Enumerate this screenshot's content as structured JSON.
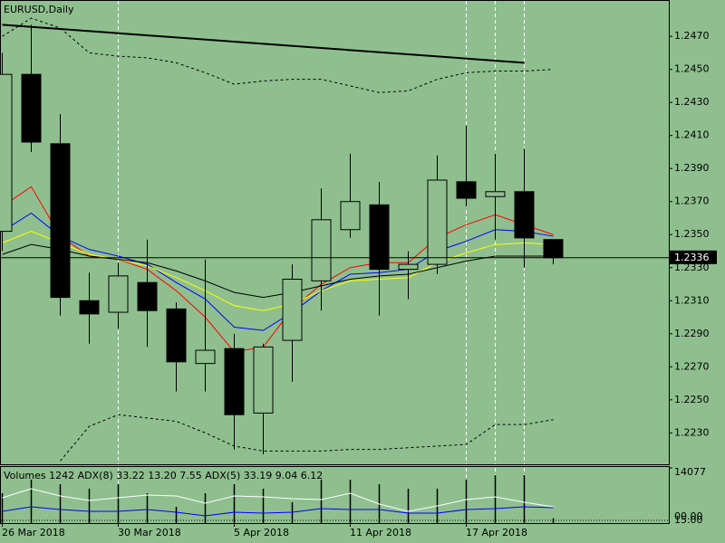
{
  "chart_data": [
    {
      "type": "candlestick",
      "title": "EURUSD,Daily",
      "categories": [
        "26 Mar 2018",
        null,
        null,
        null,
        "30 Mar 2018",
        null,
        null,
        null,
        "5 Apr 2018",
        null,
        null,
        null,
        "11 Apr 2018",
        null,
        null,
        null,
        "17 Apr 2018",
        null,
        null,
        null
      ],
      "open": [
        1.2352,
        1.2447,
        1.2405,
        1.231,
        1.2303,
        1.2321,
        1.2305,
        1.2272,
        1.2281,
        1.2242,
        1.2286,
        1.2322,
        1.2353,
        1.2368,
        1.2329,
        1.2332,
        1.2382,
        1.2373,
        1.2376,
        1.2347
      ],
      "high": [
        1.246,
        1.2477,
        1.2423,
        1.2327,
        1.2333,
        1.2347,
        1.2309,
        1.2335,
        1.229,
        1.2284,
        1.2332,
        1.2378,
        1.2399,
        1.2382,
        1.234,
        1.2398,
        1.2416,
        1.2399,
        1.2402,
        1.2347
      ],
      "low": [
        1.234,
        1.24,
        1.2301,
        1.2284,
        1.2293,
        1.2282,
        1.2255,
        1.2255,
        1.222,
        1.2217,
        1.2261,
        1.2304,
        1.2348,
        1.2301,
        1.2311,
        1.2326,
        1.2367,
        1.2347,
        1.233,
        1.2332
      ],
      "close": [
        1.2447,
        1.2406,
        1.2312,
        1.2302,
        1.2325,
        1.2304,
        1.2273,
        1.228,
        1.2241,
        1.2282,
        1.2323,
        1.2359,
        1.237,
        1.2329,
        1.2332,
        1.2383,
        1.2372,
        1.2376,
        1.2348,
        1.2336
      ],
      "up_color": "#8fbf8f",
      "down_color": "#000000",
      "series": [
        {
          "color": "#ff0000",
          "values": [
            1.2367,
            1.2379,
            1.2349,
            1.2337,
            1.2335,
            1.2329,
            1.2316,
            1.23,
            1.2279,
            1.2282,
            1.2305,
            1.232,
            1.233,
            1.2333,
            1.2333,
            1.2348,
            1.2356,
            1.2362,
            1.2356,
            1.235
          ]
        },
        {
          "color": "#0000ff",
          "values": [
            1.2352,
            1.2363,
            1.2349,
            1.2341,
            1.2337,
            1.2332,
            1.2321,
            1.2311,
            1.2294,
            1.2292,
            1.2303,
            1.2316,
            1.2326,
            1.2327,
            1.2329,
            1.234,
            1.2346,
            1.2353,
            1.2352,
            1.2349
          ]
        },
        {
          "color": "#ffff00",
          "values": [
            1.2345,
            1.2352,
            1.2345,
            1.2338,
            1.2335,
            1.2331,
            1.2324,
            1.2316,
            1.2307,
            1.2304,
            1.2308,
            1.2316,
            1.2322,
            1.2323,
            1.2324,
            1.2333,
            1.2339,
            1.2344,
            1.2345,
            1.2344
          ]
        },
        {
          "color": "#000000",
          "values": [
            1.2338,
            1.2344,
            1.2341,
            1.2337,
            1.2335,
            1.2333,
            1.2328,
            1.2322,
            1.2315,
            1.2312,
            1.2315,
            1.2319,
            1.2323,
            1.2325,
            1.2326,
            1.233,
            1.2334,
            1.2337,
            1.2337,
            1.2337
          ]
        },
        {
          "color": "#000000",
          "dash": true,
          "values": [
            1.247,
            1.2481,
            1.2475,
            1.246,
            1.2458,
            1.2457,
            1.2454,
            1.2448,
            1.2441,
            1.2443,
            1.2444,
            1.2444,
            1.244,
            1.2436,
            1.2437,
            1.2444,
            1.2448,
            1.2449,
            1.2449,
            1.245
          ]
        },
        {
          "color": "#000000",
          "dash": true,
          "values": [
            null,
            null,
            1.2213,
            1.2234,
            1.2241,
            1.2239,
            1.2237,
            1.223,
            1.2222,
            1.2219,
            1.2219,
            1.2219,
            1.222,
            1.222,
            1.2221,
            1.2222,
            1.2223,
            1.2235,
            1.2235,
            1.2238
          ]
        }
      ],
      "trendline": {
        "x": [
          0,
          18
        ],
        "values": [
          1.2477,
          1.2454
        ],
        "color": "#000000"
      },
      "vlines": [
        4,
        16,
        17,
        18
      ],
      "last": 1.2336,
      "ylim": [
        1.2211,
        1.2492
      ],
      "yticks": [
        {
          "value": 1.247,
          "label": "1.2470"
        },
        {
          "value": 1.245,
          "label": "1.2450"
        },
        {
          "value": 1.243,
          "label": "1.2430"
        },
        {
          "value": 1.241,
          "label": "1.2410"
        },
        {
          "value": 1.239,
          "label": "1.2390"
        },
        {
          "value": 1.237,
          "label": "1.2370"
        },
        {
          "value": 1.235,
          "label": "1.2350"
        },
        {
          "value": 1.233,
          "label": "1.2330"
        },
        {
          "value": 1.231,
          "label": "1.2310"
        },
        {
          "value": 1.229,
          "label": "1.2290"
        },
        {
          "value": 1.227,
          "label": "1.2270"
        },
        {
          "value": 1.225,
          "label": "1.2250"
        },
        {
          "value": 1.223,
          "label": "1.2230"
        }
      ]
    },
    {
      "type": "bar",
      "title": "Volumes 1242 ADX(8) 33.22 13.20 7.55 ADX(5) 33.19 9.04 6.12",
      "values": [
        7615,
        11077,
        9923,
        8769,
        9923,
        7615,
        4154,
        7615,
        9923,
        8769,
        5308,
        11077,
        11077,
        9923,
        8769,
        8769,
        11077,
        12231,
        12231,
        1242
      ],
      "color": "#000000",
      "series": [
        {
          "color": "#ffffff",
          "axis": "y2",
          "values": [
            40,
            50,
            42,
            37,
            40,
            43,
            42,
            34,
            42,
            41,
            39,
            38,
            45,
            33,
            25,
            31,
            38,
            41,
            35,
            30
          ]
        },
        {
          "color": "#0000ff",
          "axis": "y2",
          "values": [
            25,
            30,
            27,
            25,
            25,
            27,
            24,
            20,
            24,
            23,
            24,
            28,
            27,
            27,
            23,
            23,
            27,
            28,
            30,
            29
          ]
        }
      ],
      "ylim": [
        0,
        14077
      ],
      "yticks": [
        14077
      ],
      "y2lim": [
        12,
        73
      ],
      "y2ticks": [
        {
          "value": 15,
          "label": "15.00"
        }
      ],
      "y2_extra_label": "00.00"
    }
  ]
}
